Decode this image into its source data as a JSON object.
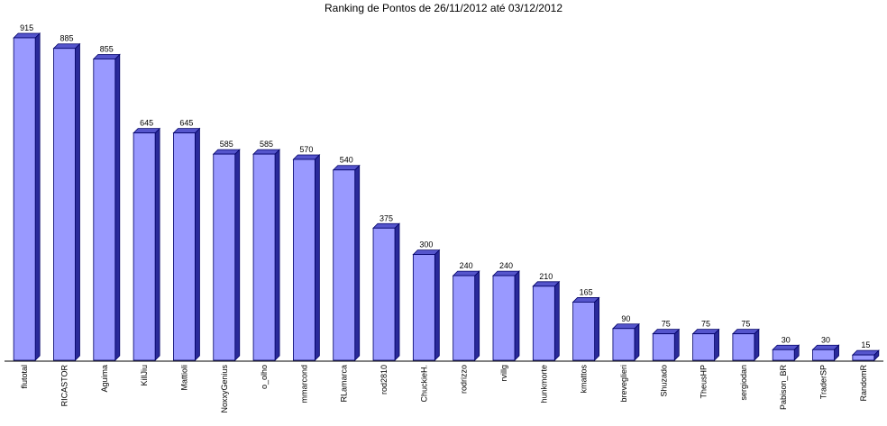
{
  "chart_data": {
    "type": "bar3d",
    "title": "Ranking de Pontos de 26/11/2012 até 03/12/2012",
    "categories": [
      "flutotal",
      "RICASTOR",
      "Aguima",
      "KillJiu",
      "Mattioli",
      "NoxxyGenius",
      "o_olho",
      "mmarcond",
      "RLamarca",
      "rod2810",
      "ChuckieH.",
      "rodrizzo",
      "rvillg",
      "hunkmorte",
      "kmattos",
      "breveglieri",
      "Shuzado",
      "TheusHP",
      "sergiodan",
      "Pabison_BR",
      "TraderSP",
      "RandomR"
    ],
    "values": [
      915,
      885,
      855,
      645,
      645,
      585,
      585,
      570,
      540,
      375,
      300,
      240,
      240,
      210,
      165,
      90,
      75,
      75,
      75,
      30,
      30,
      15
    ],
    "color": "#9999ff"
  }
}
